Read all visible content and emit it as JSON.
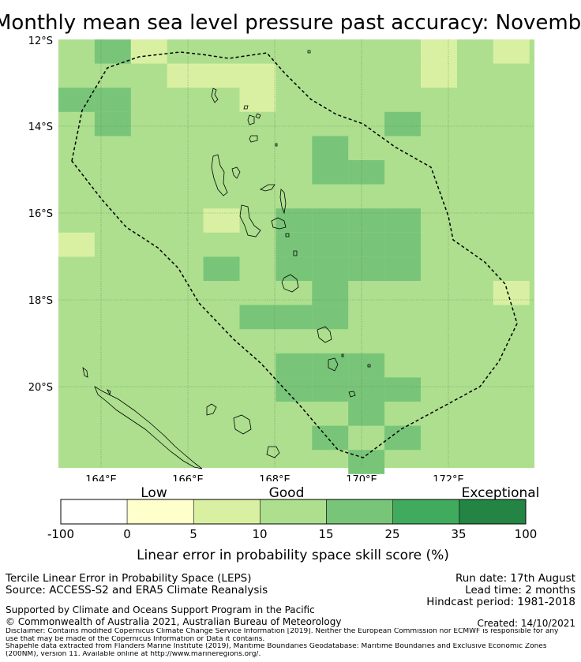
{
  "title": "Monthly mean sea level pressure past accuracy: November - February",
  "map": {
    "lat_ticks": [
      "12°S",
      "14°S",
      "16°S",
      "18°S",
      "20°S"
    ],
    "lon_ticks": [
      "164°E",
      "166°E",
      "168°E",
      "170°E",
      "172°E"
    ],
    "grid_cells": [
      {
        "col": 1,
        "row": 0,
        "band": "good-high"
      },
      {
        "col": 2,
        "row": 0,
        "band": "moderate"
      },
      {
        "col": 10,
        "row": 0,
        "band": "moderate"
      },
      {
        "col": 10,
        "row": 1,
        "band": "moderate"
      },
      {
        "col": 12,
        "row": 0,
        "band": "moderate"
      },
      {
        "col": 3,
        "row": 1,
        "band": "moderate"
      },
      {
        "col": 4,
        "row": 1,
        "band": "moderate"
      },
      {
        "col": 5,
        "row": 1,
        "band": "moderate"
      },
      {
        "col": 0,
        "row": 2,
        "band": "good-high"
      },
      {
        "col": 1,
        "row": 2,
        "band": "good-high"
      },
      {
        "col": 1,
        "row": 3,
        "band": "good-high"
      },
      {
        "col": 5,
        "row": 2,
        "band": "moderate"
      },
      {
        "col": 9,
        "row": 3,
        "band": "good-high"
      },
      {
        "col": 7,
        "row": 4,
        "band": "good-high"
      },
      {
        "col": 7,
        "row": 5,
        "band": "good-high"
      },
      {
        "col": 8,
        "row": 5,
        "band": "good-high"
      },
      {
        "col": 4,
        "row": 7,
        "band": "moderate"
      },
      {
        "col": 6,
        "row": 7,
        "band": "good-high"
      },
      {
        "col": 7,
        "row": 7,
        "band": "good-high"
      },
      {
        "col": 8,
        "row": 7,
        "band": "good-high"
      },
      {
        "col": 9,
        "row": 7,
        "band": "good-high"
      },
      {
        "col": 6,
        "row": 8,
        "band": "good-high"
      },
      {
        "col": 7,
        "row": 8,
        "band": "good-high"
      },
      {
        "col": 8,
        "row": 8,
        "band": "good-high"
      },
      {
        "col": 9,
        "row": 8,
        "band": "good-high"
      },
      {
        "col": 6,
        "row": 9,
        "band": "good-high"
      },
      {
        "col": 7,
        "row": 9,
        "band": "good-high"
      },
      {
        "col": 8,
        "row": 9,
        "band": "good-high"
      },
      {
        "col": 9,
        "row": 9,
        "band": "good-high"
      },
      {
        "col": 0,
        "row": 8,
        "band": "moderate"
      },
      {
        "col": 4,
        "row": 9,
        "band": "good-high"
      },
      {
        "col": 7,
        "row": 10,
        "band": "good-high"
      },
      {
        "col": 12,
        "row": 10,
        "band": "moderate"
      },
      {
        "col": 5,
        "row": 11,
        "band": "good-high"
      },
      {
        "col": 6,
        "row": 11,
        "band": "good-high"
      },
      {
        "col": 7,
        "row": 11,
        "band": "good-high"
      },
      {
        "col": 6,
        "row": 13,
        "band": "good-high"
      },
      {
        "col": 7,
        "row": 13,
        "band": "good-high"
      },
      {
        "col": 8,
        "row": 13,
        "band": "good-high"
      },
      {
        "col": 6,
        "row": 14,
        "band": "good-high"
      },
      {
        "col": 7,
        "row": 14,
        "band": "good-high"
      },
      {
        "col": 8,
        "row": 14,
        "band": "good-high"
      },
      {
        "col": 9,
        "row": 14,
        "band": "good-high"
      },
      {
        "col": 8,
        "row": 15,
        "band": "good-high"
      },
      {
        "col": 7,
        "row": 16,
        "band": "good-high"
      },
      {
        "col": 9,
        "row": 16,
        "band": "good-high"
      },
      {
        "col": 8,
        "row": 17,
        "band": "good-high"
      }
    ],
    "colors": {
      "good": "#addf8e",
      "good-high": "#78c579",
      "moderate": "#d9f0a3",
      "low": "#ffffcc",
      "exceptional": "#238443",
      "very-good": "#41ab5d",
      "none": "#ffffff"
    }
  },
  "colorbar": {
    "category_labels": [
      "Low",
      "Good",
      "Exceptional"
    ],
    "ticks": [
      "-100",
      "0",
      "5",
      "10",
      "15",
      "25",
      "35",
      "100"
    ],
    "segment_colors": [
      "#ffffff",
      "#ffffcc",
      "#d9f0a3",
      "#addf8e",
      "#78c579",
      "#41ab5d",
      "#238443"
    ],
    "label": "Linear error in probability space skill score (%)"
  },
  "info": {
    "method": "Tercile Linear Error in Probability Space (LEPS)",
    "source": "Source: ACCESS-S2 and ERA5 Climate Reanalysis",
    "run_date": "Run date: 17th August",
    "lead_time": "Lead time: 2 months",
    "hindcast": "Hindcast period: 1981-2018",
    "supported_by": "Supported by Climate and Oceans Support Program in the Pacific",
    "copyright": "© Commonwealth of Australia 2021, Australian Bureau of Meteorology",
    "created": "Created: 14/10/2021",
    "disclaimer_1": "Disclaimer: Contains modified Copernicus Climate Change Service Information [2019]. Neither the European Commission nor ECMWF is responsible for any",
    "disclaimer_2": "use that may be made of the Copernicus Information or Data it contains.",
    "disclaimer_3": "Shapefile data extracted from Flanders Marine Institute (2019), Maritime Boundaries Geodatabase: Maritime Boundaries and Exclusive Economic Zones",
    "disclaimer_4": "(200NM), version 11. Available online at http://www.marineregions.org/."
  }
}
